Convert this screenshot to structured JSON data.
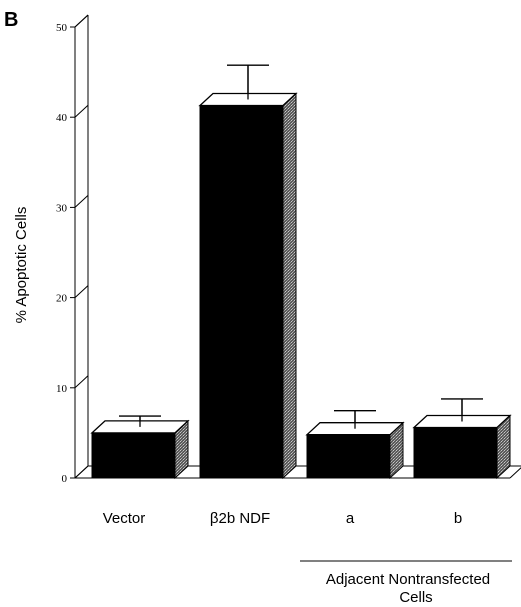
{
  "panel_letter": "B",
  "chart_data": {
    "type": "bar",
    "title": "",
    "xlabel": "",
    "ylabel": "% Apoptotic Cells",
    "ylim": [
      0,
      50
    ],
    "yticks": [
      0,
      10,
      20,
      30,
      40,
      50
    ],
    "style": "3d",
    "grid": false,
    "categories": [
      "Vector",
      "β2b NDF",
      "a",
      "b"
    ],
    "values": [
      5.0,
      41.3,
      4.8,
      5.6
    ],
    "error": [
      1.2,
      3.8,
      2.0,
      2.5
    ],
    "bar_color": "#000000",
    "group_label": {
      "line1": "Adjacent Nontransfected",
      "line2": "Cells",
      "categories": [
        "a",
        "b"
      ]
    }
  }
}
